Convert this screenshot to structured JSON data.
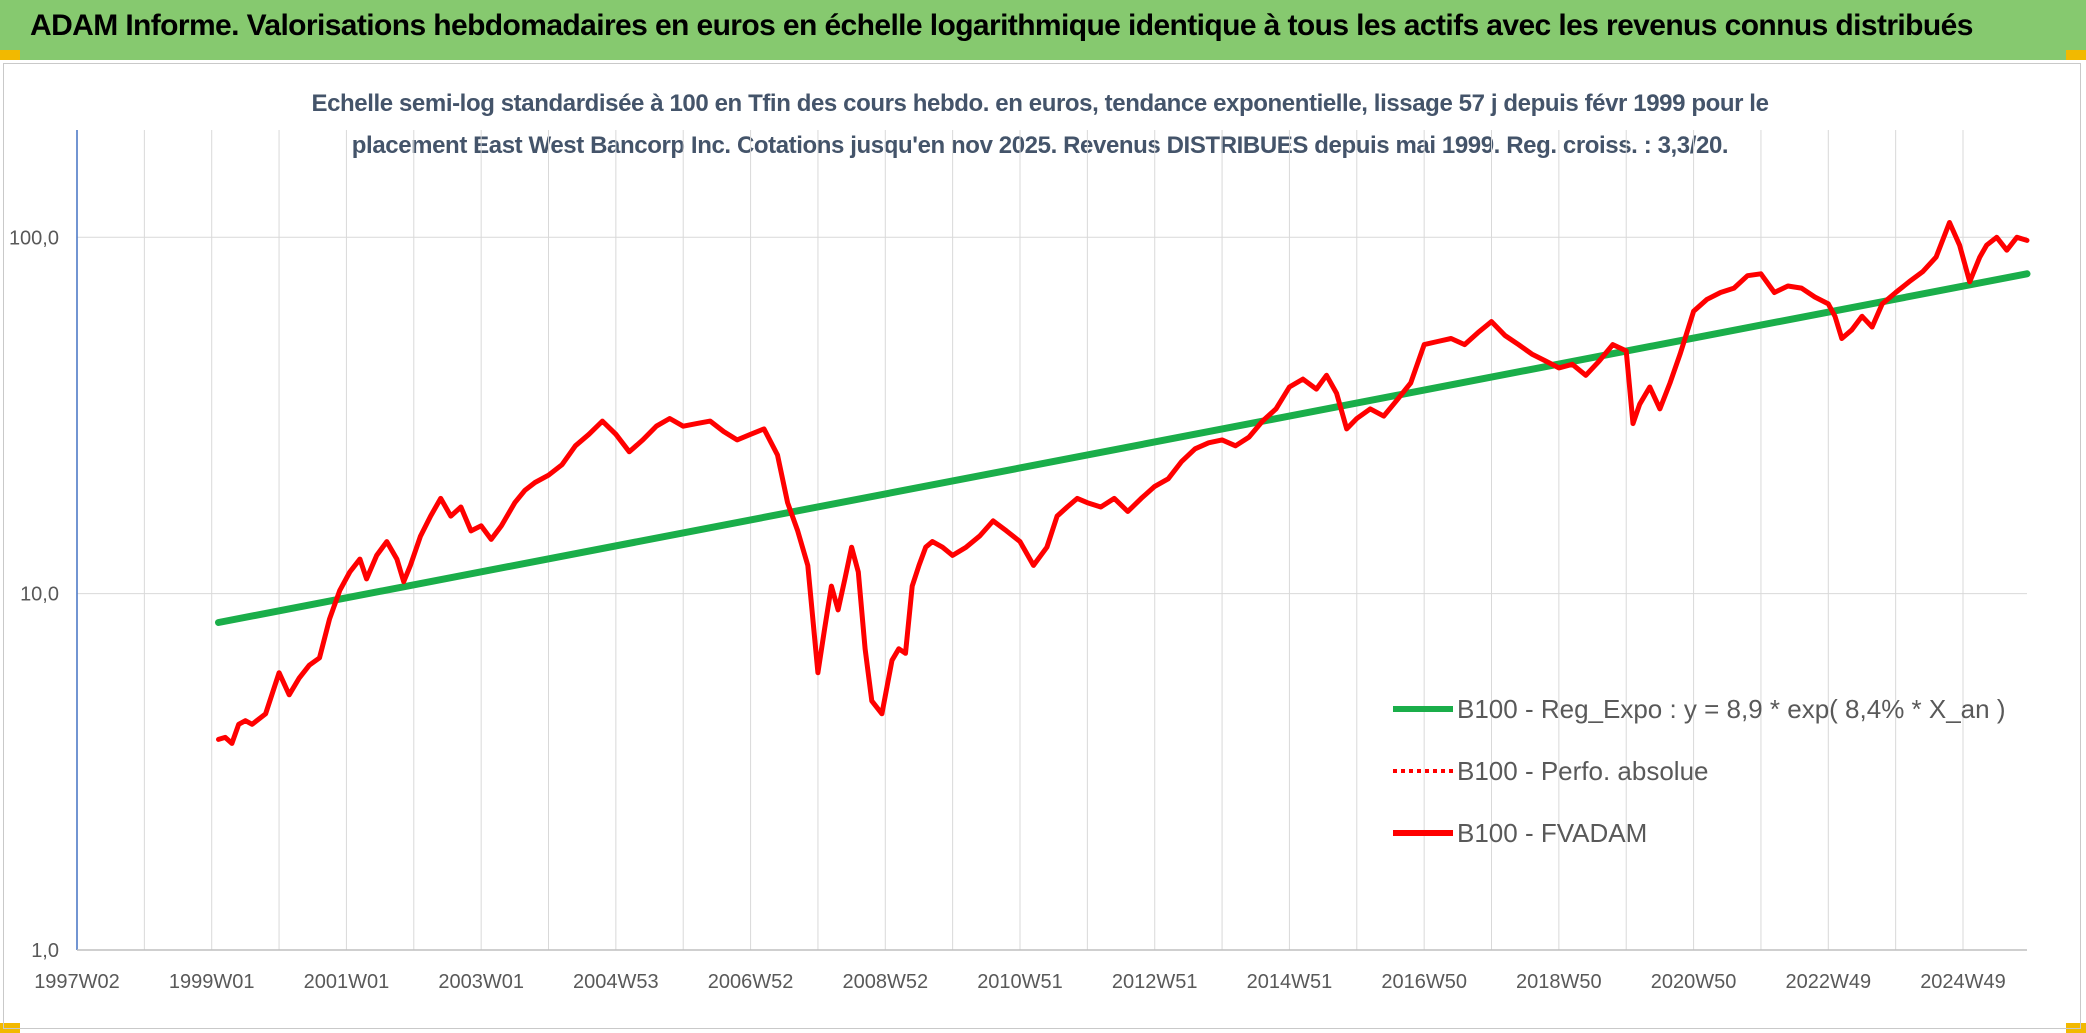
{
  "banner": {
    "title": "ADAM Informe. Valorisations hebdomadaires en euros en échelle logarithmique identique à tous les actifs avec les revenus connus distribués"
  },
  "chart_data": {
    "type": "line",
    "title_line1": "Echelle semi-log standardisée à 100 en Tfin des cours hebdo. en euros, tendance exponentielle, lissage 57 j depuis févr 1999 pour le",
    "title_line2": "placement East West Bancorp Inc. Cotations jusqu'en nov 2025. Revenus DISTRIBUES depuis mai 1999. Reg. croiss. : 3,3/20.",
    "xlabel": "",
    "ylabel": "",
    "y_scale": "log",
    "ylim": [
      1,
      200
    ],
    "xlim": [
      1997.0,
      2025.95
    ],
    "y_ticks": [
      {
        "value": 1,
        "label": "1,0"
      },
      {
        "value": 10,
        "label": "10,0"
      },
      {
        "value": 100,
        "label": "100,0"
      }
    ],
    "x_ticks": [
      {
        "year": 1997.0,
        "label": "1997W02"
      },
      {
        "year": 1999.0,
        "label": "1999W01"
      },
      {
        "year": 2001.0,
        "label": "2001W01"
      },
      {
        "year": 2003.0,
        "label": "2003W01"
      },
      {
        "year": 2005.0,
        "label": "2004W53"
      },
      {
        "year": 2007.0,
        "label": "2006W52"
      },
      {
        "year": 2009.0,
        "label": "2008W52"
      },
      {
        "year": 2011.0,
        "label": "2010W51"
      },
      {
        "year": 2013.0,
        "label": "2012W51"
      },
      {
        "year": 2015.0,
        "label": "2014W51"
      },
      {
        "year": 2017.0,
        "label": "2016W50"
      },
      {
        "year": 2019.0,
        "label": "2018W50"
      },
      {
        "year": 2021.0,
        "label": "2020W50"
      },
      {
        "year": 2023.0,
        "label": "2022W49"
      },
      {
        "year": 2025.0,
        "label": "2024W49"
      }
    ],
    "grid": true,
    "legend_position": "bottom-right",
    "series": [
      {
        "name": "B100 - Reg_Expo : y = 8,9 * exp( 8,4% *  X_an )",
        "color": "#1aae4a",
        "style": "solid",
        "x": [
          1999.1,
          2025.95
        ],
        "y": [
          8.3,
          79.0
        ]
      },
      {
        "name": "B100 - Perfo. absolue",
        "color": "#ff0000",
        "style": "dotted",
        "x": [],
        "y": []
      },
      {
        "name": "B100 - FVADAM",
        "color": "#ff0000",
        "style": "solid",
        "x": [
          1999.1,
          1999.2,
          1999.3,
          1999.4,
          1999.5,
          1999.6,
          1999.8,
          2000.0,
          2000.15,
          2000.3,
          2000.45,
          2000.6,
          2000.75,
          2000.9,
          2001.05,
          2001.2,
          2001.3,
          2001.45,
          2001.6,
          2001.75,
          2001.85,
          2001.95,
          2002.1,
          2002.25,
          2002.4,
          2002.55,
          2002.7,
          2002.85,
          2003.0,
          2003.15,
          2003.3,
          2003.5,
          2003.65,
          2003.8,
          2004.0,
          2004.2,
          2004.4,
          2004.6,
          2004.8,
          2005.0,
          2005.2,
          2005.4,
          2005.6,
          2005.8,
          2006.0,
          2006.2,
          2006.4,
          2006.6,
          2006.8,
          2007.0,
          2007.2,
          2007.4,
          2007.55,
          2007.7,
          2007.85,
          2008.0,
          2008.1,
          2008.2,
          2008.3,
          2008.4,
          2008.5,
          2008.6,
          2008.7,
          2008.8,
          2008.95,
          2009.1,
          2009.2,
          2009.3,
          2009.4,
          2009.5,
          2009.6,
          2009.7,
          2009.85,
          2010.0,
          2010.2,
          2010.4,
          2010.6,
          2010.8,
          2011.0,
          2011.2,
          2011.4,
          2011.55,
          2011.7,
          2011.85,
          2012.0,
          2012.2,
          2012.4,
          2012.6,
          2012.8,
          2013.0,
          2013.2,
          2013.4,
          2013.6,
          2013.8,
          2014.0,
          2014.2,
          2014.4,
          2014.6,
          2014.8,
          2015.0,
          2015.2,
          2015.4,
          2015.55,
          2015.7,
          2015.85,
          2016.0,
          2016.2,
          2016.4,
          2016.6,
          2016.8,
          2017.0,
          2017.2,
          2017.4,
          2017.6,
          2017.8,
          2018.0,
          2018.2,
          2018.4,
          2018.6,
          2018.8,
          2019.0,
          2019.2,
          2019.4,
          2019.6,
          2019.8,
          2020.0,
          2020.1,
          2020.2,
          2020.35,
          2020.5,
          2020.65,
          2020.8,
          2021.0,
          2021.2,
          2021.4,
          2021.6,
          2021.8,
          2022.0,
          2022.2,
          2022.4,
          2022.6,
          2022.8,
          2023.0,
          2023.1,
          2023.2,
          2023.35,
          2023.5,
          2023.65,
          2023.8,
          2024.0,
          2024.2,
          2024.4,
          2024.6,
          2024.8,
          2024.95,
          2025.1,
          2025.25,
          2025.35,
          2025.5,
          2025.65,
          2025.8,
          2025.95
        ],
        "y": [
          3.9,
          3.95,
          3.8,
          4.3,
          4.4,
          4.3,
          4.6,
          6.0,
          5.2,
          5.8,
          6.3,
          6.6,
          8.5,
          10.2,
          11.5,
          12.5,
          11.0,
          12.8,
          14.0,
          12.5,
          10.8,
          12.0,
          14.5,
          16.5,
          18.5,
          16.5,
          17.5,
          15.0,
          15.5,
          14.2,
          15.5,
          18.0,
          19.5,
          20.5,
          21.5,
          23.0,
          26.0,
          28.0,
          30.5,
          28.0,
          25.0,
          27.0,
          29.5,
          31.0,
          29.5,
          30.0,
          30.5,
          28.5,
          27.0,
          28.0,
          29.0,
          24.5,
          18.0,
          15.0,
          12.0,
          6.0,
          8.0,
          10.5,
          9.0,
          11.0,
          13.5,
          11.5,
          7.0,
          5.0,
          4.6,
          6.5,
          7.0,
          6.8,
          10.5,
          12.0,
          13.5,
          14.0,
          13.5,
          12.8,
          13.5,
          14.5,
          16.0,
          15.0,
          14.0,
          12.0,
          13.5,
          16.5,
          17.5,
          18.5,
          18.0,
          17.5,
          18.5,
          17.0,
          18.5,
          20.0,
          21.0,
          23.5,
          25.5,
          26.5,
          27.0,
          26.0,
          27.5,
          30.5,
          33.0,
          38.0,
          40.0,
          37.5,
          41.0,
          36.5,
          29.0,
          31.0,
          33.0,
          31.5,
          35.0,
          39.0,
          50.0,
          51.0,
          52.0,
          50.0,
          54.0,
          58.0,
          53.0,
          50.0,
          47.0,
          45.0,
          43.0,
          44.0,
          41.0,
          45.0,
          50.0,
          48.0,
          30.0,
          34.0,
          38.0,
          33.0,
          39.0,
          47.0,
          62.0,
          67.0,
          70.0,
          72.0,
          78.0,
          79.0,
          70.0,
          73.0,
          72.0,
          68.0,
          65.0,
          60.0,
          52.0,
          55.0,
          60.0,
          56.0,
          65.0,
          70.0,
          75.0,
          80.0,
          88.0,
          110.0,
          95.0,
          75.0,
          88.0,
          95.0,
          100.0,
          92.0,
          100.0,
          98.0
        ]
      }
    ]
  }
}
